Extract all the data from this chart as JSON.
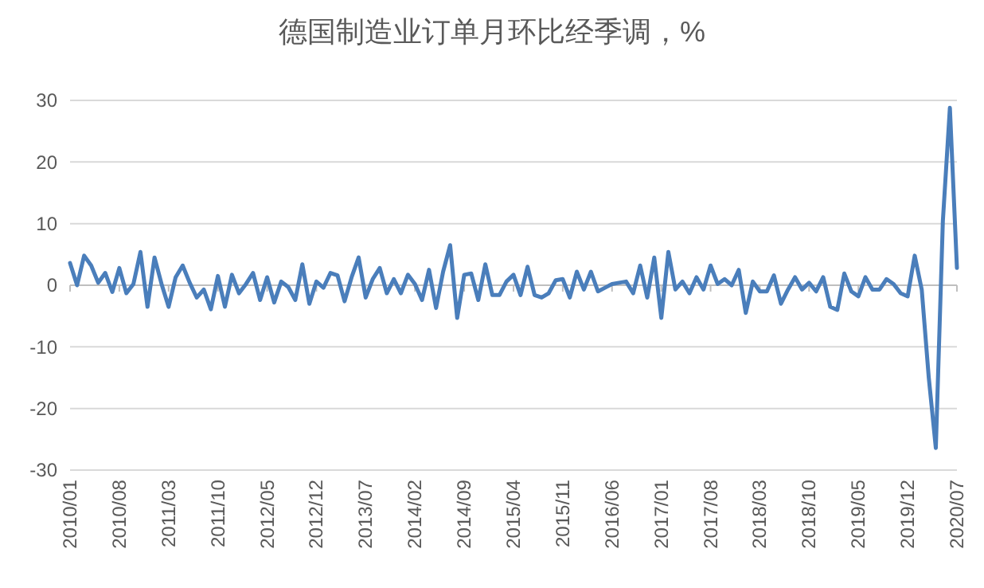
{
  "chart_data": {
    "type": "line",
    "title": "德国制造业订单月环比经季调，%",
    "categories": [
      "2010/01",
      null,
      null,
      null,
      null,
      null,
      null,
      "2010/08",
      null,
      null,
      null,
      null,
      null,
      null,
      "2011/03",
      null,
      null,
      null,
      null,
      null,
      null,
      "2011/10",
      null,
      null,
      null,
      null,
      null,
      null,
      "2012/05",
      null,
      null,
      null,
      null,
      null,
      null,
      "2012/12",
      null,
      null,
      null,
      null,
      null,
      null,
      "2013/07",
      null,
      null,
      null,
      null,
      null,
      null,
      "2014/02",
      null,
      null,
      null,
      null,
      null,
      null,
      "2014/09",
      null,
      null,
      null,
      null,
      null,
      null,
      "2015/04",
      null,
      null,
      null,
      null,
      null,
      null,
      "2015/11",
      null,
      null,
      null,
      null,
      null,
      null,
      "2016/06",
      null,
      null,
      null,
      null,
      null,
      null,
      "2017/01",
      null,
      null,
      null,
      null,
      null,
      null,
      "2017/08",
      null,
      null,
      null,
      null,
      null,
      null,
      "2018/03",
      null,
      null,
      null,
      null,
      null,
      null,
      "2018/10",
      null,
      null,
      null,
      null,
      null,
      null,
      "2019/05",
      null,
      null,
      null,
      null,
      null,
      null,
      "2019/12",
      null,
      null,
      null,
      null,
      null,
      null,
      "2020/07"
    ],
    "series": [
      {
        "color": "#4a7ebb",
        "values": [
          3.6,
          0,
          4.8,
          3.2,
          0.4,
          2,
          -1.1,
          2.8,
          -1.3,
          0.2,
          5.4,
          -3.5,
          4.5,
          0.2,
          -3.5,
          1.3,
          3.2,
          0.4,
          -2,
          -0.7,
          -3.9,
          1.5,
          -3.5,
          1.7,
          -1.3,
          0.2,
          2,
          -2.4,
          1.3,
          -2.8,
          0.6,
          -0.3,
          -2.4,
          3.4,
          -3,
          0.6,
          -0.4,
          2,
          1.6,
          -2.6,
          1.3,
          4.5,
          -2,
          1.0,
          2.8,
          -1.3,
          1.0,
          -1.3,
          1.7,
          0.2,
          -2.4,
          2.5,
          -3.7,
          2.2,
          6.5,
          -5.3,
          1.7,
          1.9,
          -2.4,
          3.4,
          -1.6,
          -1.6,
          0.6,
          1.7,
          -1.6,
          3,
          -1.6,
          -2,
          -1.3,
          0.8,
          1,
          -2,
          2.2,
          -0.7,
          2.2,
          -1,
          -0.4,
          0.2,
          0.4,
          0.6,
          -1.3,
          3.2,
          -2,
          4.5,
          -5.3,
          5.4,
          -0.7,
          0.6,
          -1.3,
          1.3,
          -0.7,
          3.2,
          0.2,
          1,
          0,
          2.5,
          -4.5,
          0.6,
          -1,
          -1,
          1.6,
          -3,
          -0.7,
          1.3,
          -0.7,
          0.4,
          -1,
          1.3,
          -3.5,
          -4,
          1.9,
          -1,
          -1.8,
          1.3,
          -0.7,
          -0.7,
          1,
          0.2,
          -1.3,
          -1.8,
          4.8,
          -0.7,
          -15,
          -26.4,
          10.4,
          28.8,
          2.8
        ]
      }
    ],
    "ylim": [
      -30,
      30
    ],
    "yticks": [
      -30,
      -20,
      -10,
      0,
      10,
      20,
      30
    ],
    "grid": "y"
  }
}
